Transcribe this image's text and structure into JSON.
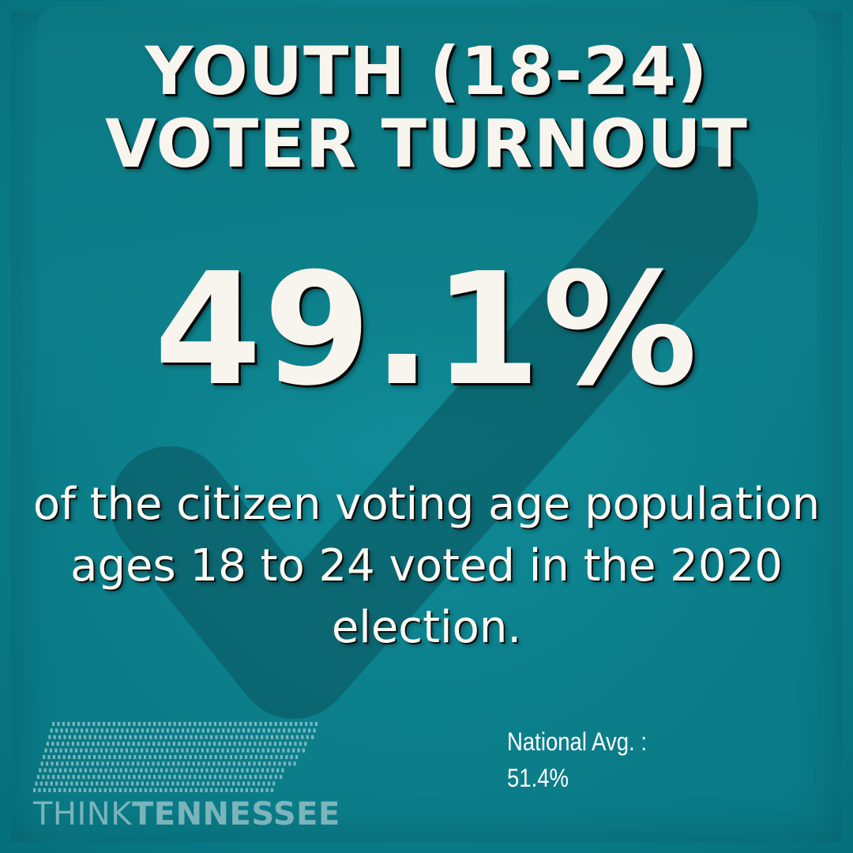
{
  "headline": {
    "line1": "YOUTH (18-24)",
    "line2": "VOTER TURNOUT"
  },
  "stat": {
    "value": "49.1%"
  },
  "description": {
    "text": "of the citizen voting age population ages 18 to 24 voted in the 2020 election."
  },
  "comparison": {
    "label": "National Avg. :",
    "value": "51.4%"
  },
  "logo": {
    "icon": "tennessee-state-dots-icon",
    "word1": "THINK",
    "word2": "TENNESSEE"
  },
  "background": {
    "icon": "checkmark-icon"
  },
  "colors": {
    "background": "#0a7f8b",
    "checkmark": "#0b5f68",
    "text": "#f7f5ee",
    "shadow": "#0a0a0a"
  }
}
